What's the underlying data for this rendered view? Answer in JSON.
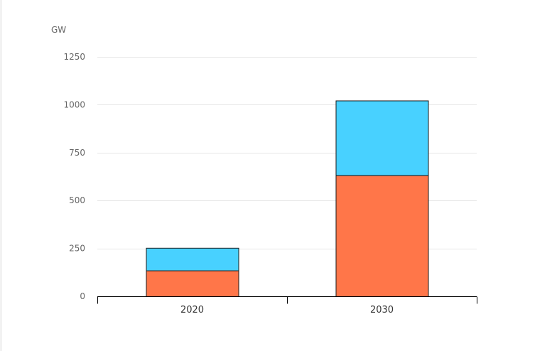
{
  "chart_data": {
    "type": "bar",
    "stacked": true,
    "categories": [
      "2020",
      "2030"
    ],
    "series": [
      {
        "values": [
          135,
          632
        ],
        "color": "#ff7649"
      },
      {
        "values": [
          118,
          390
        ],
        "color": "#48d1ff"
      }
    ],
    "ylabel": "GW",
    "ylim": [
      0,
      1250
    ],
    "yticks": [
      0,
      250,
      500,
      750,
      1000,
      1250
    ],
    "grid": true,
    "legend": "none"
  }
}
